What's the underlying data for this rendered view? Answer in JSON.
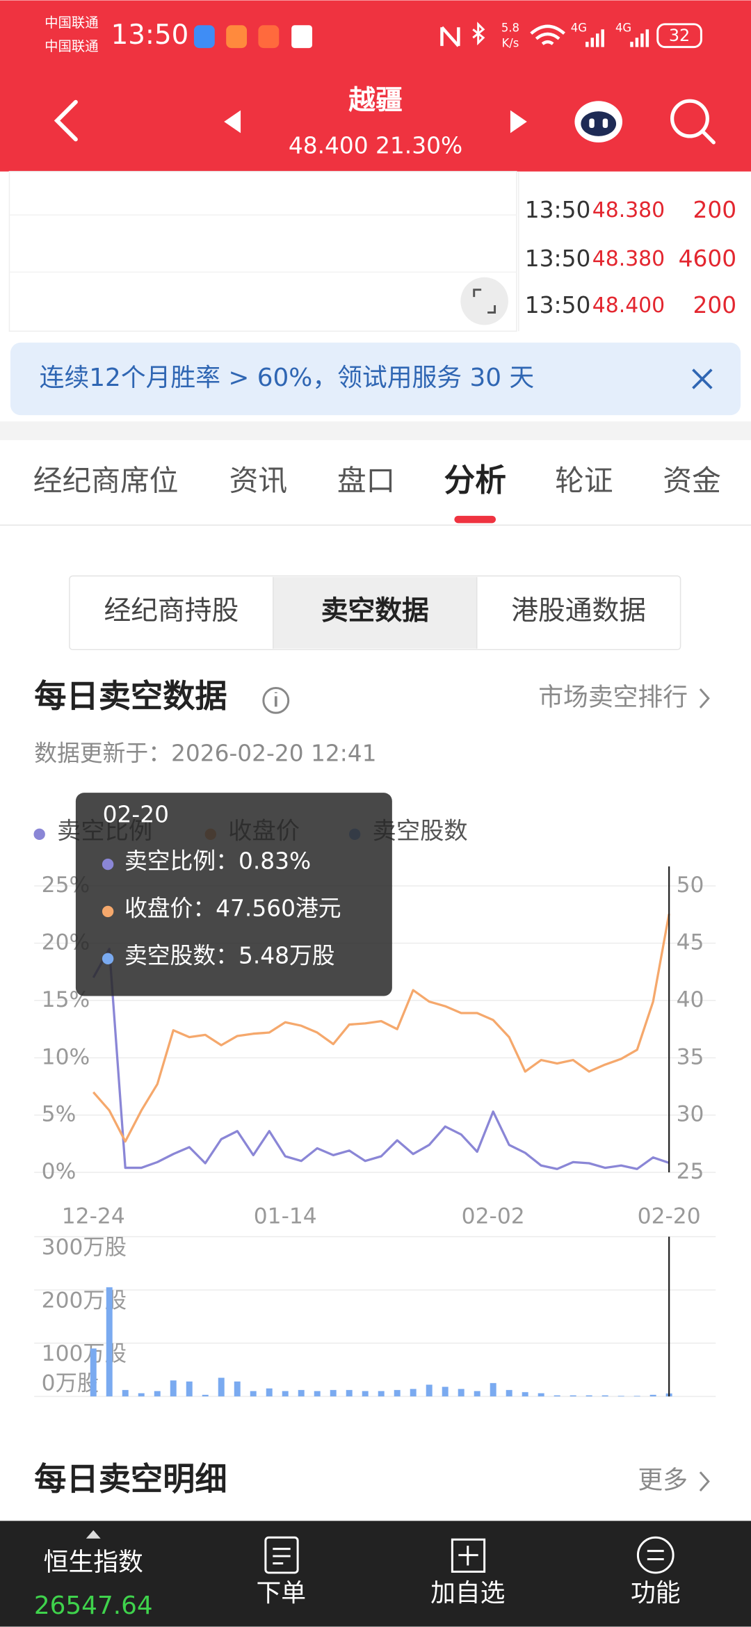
{
  "status_bar": {
    "carrier_1": "中国联通",
    "carrier_2": "中国联通",
    "time": "13:50",
    "net_speed": "5.8",
    "net_speed_unit": "K/s",
    "signal_1": "4G",
    "signal_2": "4G",
    "battery": "32"
  },
  "header": {
    "title": "越疆",
    "quote": "48.400 21.30%"
  },
  "trades": [
    [
      "13:50",
      "48.380",
      "200"
    ],
    [
      "13:50",
      "48.380",
      "4600"
    ],
    [
      "13:50",
      "48.400",
      "200"
    ]
  ],
  "banner": "连续12个月胜率 > 60%，领试用服务 30 天",
  "tabs": [
    "经纪商席位",
    "资讯",
    "盘口",
    "分析",
    "轮证",
    "资金"
  ],
  "active_tab": 3,
  "sub_tabs": [
    "经纪商持股",
    "卖空数据",
    "港股通数据"
  ],
  "active_sub_tab": 1,
  "section": {
    "title": "每日卖空数据",
    "link": "市场卖空排行",
    "updated": "数据更新于：2026-02-20 12:41"
  },
  "tooltip": {
    "date": "02-20",
    "rows": [
      "卖空比例：0.83%",
      "收盘价：47.560港元",
      "卖空股数：5.48万股"
    ]
  },
  "chart_data": [
    {
      "type": "line",
      "categories": [
        "12-24",
        null,
        null,
        null,
        null,
        null,
        null,
        null,
        null,
        null,
        null,
        null,
        "01-14",
        null,
        null,
        null,
        null,
        null,
        null,
        null,
        null,
        null,
        null,
        null,
        null,
        "02-02",
        null,
        null,
        null,
        null,
        null,
        null,
        null,
        null,
        null,
        null,
        "02-20"
      ],
      "series": [
        {
          "name": "卖空比例",
          "color": "#8a86d6",
          "values": [
            17.0,
            19.5,
            0.4,
            0.4,
            0.9,
            1.6,
            2.2,
            0.8,
            2.9,
            3.6,
            1.5,
            3.6,
            1.4,
            1.0,
            2.1,
            1.5,
            1.9,
            1.0,
            1.4,
            2.8,
            1.6,
            2.4,
            4.0,
            3.3,
            1.8,
            5.3,
            2.4,
            1.7,
            0.6,
            0.3,
            0.9,
            0.8,
            0.4,
            0.6,
            0.3,
            1.3,
            0.83
          ]
        },
        {
          "name": "收盘价",
          "color": "#f5a86c",
          "axis": "y2",
          "values": [
            32.0,
            30.4,
            27.7,
            30.4,
            32.7,
            37.4,
            36.8,
            37.0,
            36.1,
            36.9,
            37.1,
            37.2,
            38.1,
            37.8,
            37.2,
            36.2,
            37.9,
            38.0,
            38.2,
            37.5,
            40.9,
            39.9,
            39.5,
            38.9,
            38.9,
            38.3,
            36.8,
            33.8,
            34.8,
            34.5,
            34.8,
            33.8,
            34.4,
            34.9,
            35.7,
            39.9,
            47.56
          ]
        }
      ],
      "ylim": [
        0,
        26.7
      ],
      "yticks": [
        {
          "value": 0,
          "label": "0%"
        },
        {
          "value": 5,
          "label": "5%"
        },
        {
          "value": 10,
          "label": "10%"
        },
        {
          "value": 15,
          "label": "15%"
        },
        {
          "value": 20,
          "label": "20%"
        },
        {
          "value": 25,
          "label": "25%"
        }
      ],
      "y2lim": [
        25,
        51.7
      ],
      "y2ticks": [
        25,
        30,
        35,
        40,
        45,
        50
      ],
      "grid": true
    },
    {
      "type": "bar",
      "categories": [
        null,
        null,
        null,
        null,
        null,
        null,
        null,
        null,
        null,
        null,
        null,
        null,
        null,
        null,
        null,
        null,
        null,
        null,
        null,
        null,
        null,
        null,
        null,
        null,
        null,
        null,
        null,
        null,
        null,
        null,
        null,
        null,
        null,
        null,
        null,
        null,
        null
      ],
      "series": [
        {
          "name": "卖空股数",
          "color": "#7aaaf0",
          "values": [
            90,
            205,
            12,
            6,
            10,
            30,
            28,
            3,
            35,
            28,
            10,
            15,
            10,
            12,
            10,
            12,
            12,
            10,
            10,
            12,
            14,
            22,
            18,
            14,
            10,
            25,
            12,
            8,
            6,
            2,
            2,
            2,
            2,
            1,
            1,
            3,
            5.48
          ]
        }
      ],
      "ylim": [
        0,
        300
      ],
      "yticks": [
        {
          "value": 0,
          "label": "0万股"
        },
        {
          "value": 100,
          "label": "100万股"
        },
        {
          "value": 200,
          "label": "200万股"
        },
        {
          "value": 300,
          "label": "300万股"
        }
      ],
      "grid": true
    }
  ],
  "detail_section": {
    "title": "每日卖空明细",
    "link": "更多"
  },
  "bottom_nav": {
    "index_name": "恒生指数",
    "index_value": "26547.64",
    "items": [
      "下单",
      "加自选",
      "功能"
    ]
  }
}
